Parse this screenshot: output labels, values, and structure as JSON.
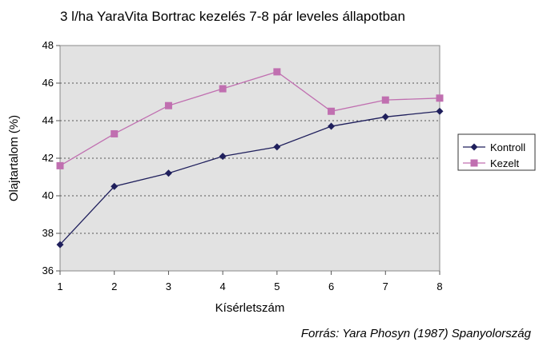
{
  "chart_data": {
    "type": "line",
    "title": "3 l/ha YaraVita Bortrac kezelés 7-8 pár leveles állapotban",
    "xlabel": "Kísérletszám",
    "ylabel": "Olajtartalom (%)",
    "x": [
      1,
      2,
      3,
      4,
      5,
      6,
      7,
      8
    ],
    "xlim": [
      1,
      8
    ],
    "ylim": [
      36,
      48
    ],
    "yticks": [
      36,
      38,
      40,
      42,
      44,
      46,
      48
    ],
    "grid": "horizontal-dotted",
    "legend_position": "right",
    "source": "Forrás: Yara Phosyn (1987) Spanyolország",
    "series": [
      {
        "name": "Kontroll",
        "color": "#1f1f5c",
        "marker": "diamond",
        "values": [
          37.4,
          40.5,
          41.2,
          42.1,
          42.6,
          43.7,
          44.2,
          44.5
        ]
      },
      {
        "name": "Kezelt",
        "color": "#c06fb0",
        "marker": "square",
        "values": [
          41.6,
          43.3,
          44.8,
          45.7,
          46.6,
          44.5,
          45.1,
          45.2
        ]
      }
    ]
  }
}
